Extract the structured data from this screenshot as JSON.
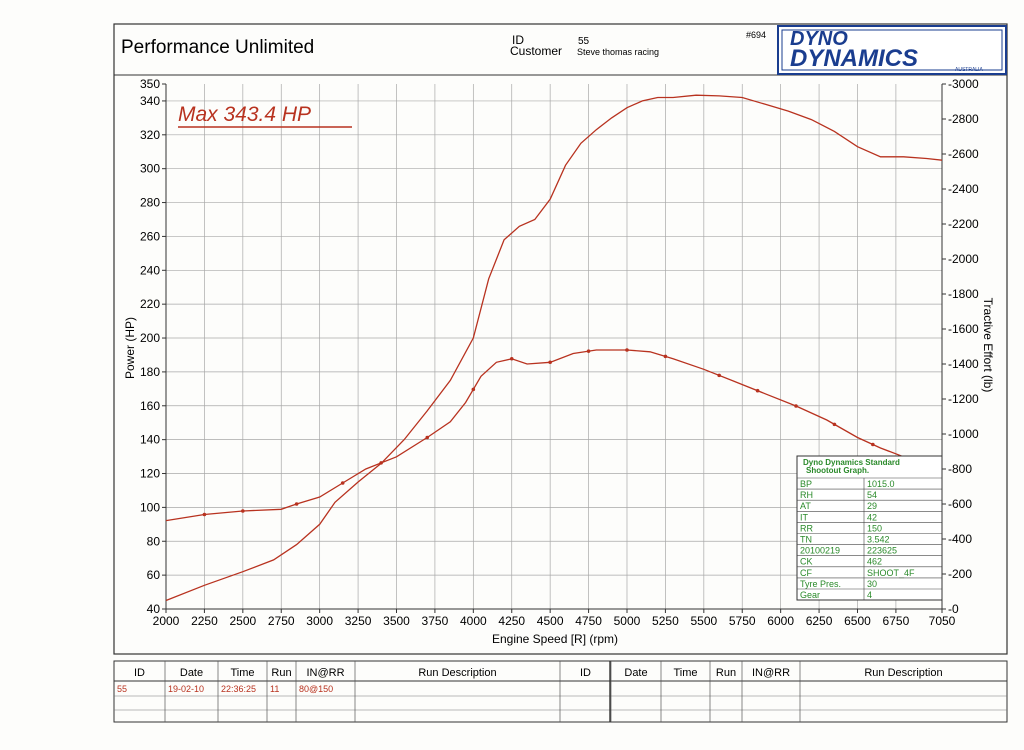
{
  "header": {
    "shop_name": "Performance Unlimited",
    "id_label": "ID",
    "id_value": "55",
    "customer_label": "Customer",
    "customer_value": "Steve thomas racing",
    "sheet_number": "#694",
    "brand_line1": "DYNO",
    "brand_line2": "DYNAMICS",
    "brand_sub": "AUSTRALIA"
  },
  "max_label": "Max 343.4 HP",
  "colors": {
    "curve": "#b8321f",
    "grid": "#a8a8a8",
    "axis": "#333333",
    "box_text": "#2a8a2a",
    "brand": "#1a3d8f"
  },
  "chart_data": {
    "type": "line",
    "xlabel": "Engine Speed [R] (rpm)",
    "ylabel": "Power (HP)",
    "y2label": "Tractive Effort (lb)",
    "xlim": [
      2000,
      7050
    ],
    "ylim": [
      40,
      350
    ],
    "y2lim": [
      0,
      3000
    ],
    "x_ticks": [
      2000,
      2250,
      2500,
      2750,
      3000,
      3250,
      3500,
      3750,
      4000,
      4250,
      4500,
      4750,
      5000,
      5250,
      5500,
      5750,
      6000,
      6250,
      6500,
      6750,
      7050
    ],
    "y_ticks": [
      40,
      60,
      80,
      100,
      120,
      140,
      160,
      180,
      200,
      220,
      240,
      260,
      280,
      300,
      320,
      340,
      350
    ],
    "y2_ticks": [
      0,
      200,
      400,
      600,
      800,
      1000,
      1200,
      1400,
      1600,
      1800,
      2000,
      2200,
      2400,
      2600,
      2800,
      3000
    ],
    "grid": true,
    "series": [
      {
        "axis": "left",
        "x": [
          2000,
          2250,
          2500,
          2700,
          2850,
          3000,
          3100,
          3250,
          3400,
          3550,
          3700,
          3850,
          4000,
          4100,
          4200,
          4300,
          4400,
          4500,
          4600,
          4700,
          4800,
          4900,
          5000,
          5100,
          5200,
          5300,
          5450,
          5600,
          5750,
          5900,
          6050,
          6200,
          6350,
          6500,
          6650,
          6800,
          6950,
          7050
        ],
        "y": [
          45,
          54,
          62,
          69,
          78,
          90,
          103,
          115,
          126,
          140,
          157,
          175,
          200,
          235,
          258,
          266,
          270,
          282,
          302,
          315,
          323,
          330,
          336,
          340,
          342,
          342,
          343.4,
          343,
          342,
          338,
          334,
          329,
          322,
          313,
          307,
          307,
          306,
          305
        ]
      },
      {
        "axis": "right",
        "x": [
          2000,
          2250,
          2500,
          2750,
          2850,
          3000,
          3150,
          3300,
          3500,
          3700,
          3850,
          3950,
          4050,
          4150,
          4250,
          4350,
          4500,
          4650,
          4800,
          5000,
          5150,
          5300,
          5500,
          5700,
          5900,
          6100,
          6300,
          6500,
          6650,
          6800,
          6950,
          7050
        ],
        "y": [
          505,
          540,
          560,
          570,
          600,
          640,
          720,
          800,
          870,
          980,
          1070,
          1180,
          1330,
          1410,
          1430,
          1400,
          1410,
          1460,
          1480,
          1480,
          1470,
          1430,
          1370,
          1300,
          1230,
          1160,
          1080,
          980,
          920,
          870,
          820,
          790
        ]
      }
    ],
    "markers_left_x": [
      2250,
      2500,
      2850,
      3150,
      3400,
      3700,
      4000,
      4250,
      4500,
      4750,
      5000,
      5250,
      5600,
      5850,
      6100,
      6350,
      6600,
      6900
    ]
  },
  "info_box": {
    "title_line1": "Dyno Dynamics Standard",
    "title_line2": "Shootout Graph.",
    "rows": [
      [
        "BP",
        "1015.0"
      ],
      [
        "RH",
        "54"
      ],
      [
        "AT",
        "29"
      ],
      [
        "IT",
        "42"
      ],
      [
        "RR",
        "150"
      ],
      [
        "TN",
        "3.542"
      ],
      [
        "20100219",
        "223625"
      ],
      [
        "CK",
        "462"
      ],
      [
        "CF",
        "SHOOT_4F"
      ],
      [
        "Tyre Pres.",
        "30"
      ],
      [
        "Gear",
        "4"
      ]
    ]
  },
  "run_table": {
    "headers": [
      "ID",
      "Date",
      "Time",
      "Run",
      "IN@RR",
      "Run Description",
      "ID",
      "Date",
      "Time",
      "Run",
      "IN@RR",
      "Run Description"
    ],
    "rows": [
      [
        "55",
        "19-02-10",
        "22:36:25",
        "11",
        "80@150",
        "",
        "",
        "",
        "",
        "",
        "",
        ""
      ]
    ]
  }
}
